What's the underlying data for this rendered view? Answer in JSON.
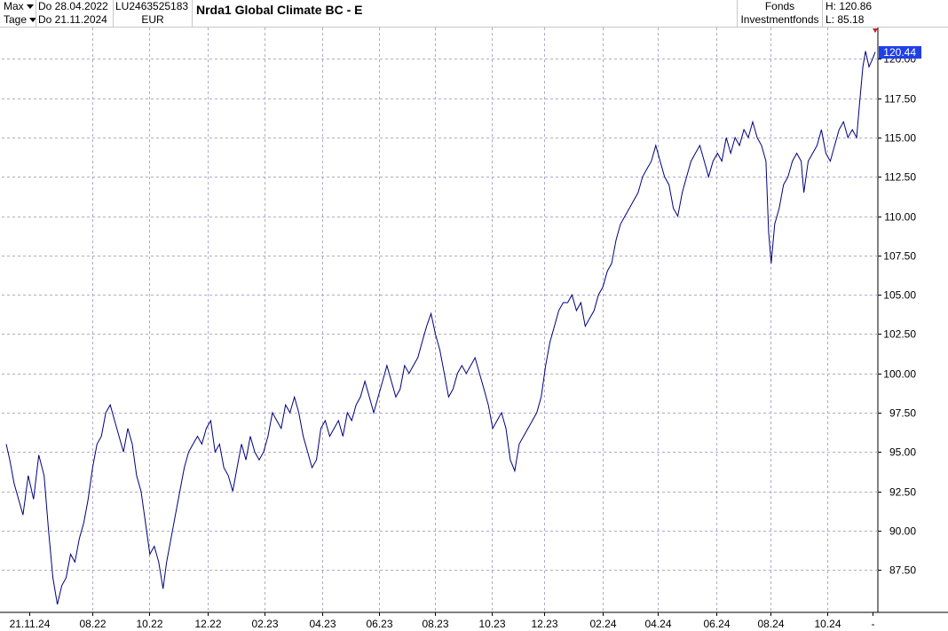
{
  "header": {
    "period_select": "Max",
    "interval_select": "Tage",
    "date_from": "Do 28.04.2022",
    "date_to": "Do 21.11.2024",
    "isin": "LU2463525183",
    "currency": "EUR",
    "title": "Nrda1 Global Climate  BC - E",
    "type1": "Fonds",
    "type2": "Investmentfonds",
    "high": "H: 120.86",
    "low": "L: 85.18"
  },
  "colors": {
    "line": "#00007f",
    "grid": "#b4a8c8",
    "last_price_bg": "#1e40e6",
    "marker": "#d02020"
  },
  "chart_data": {
    "type": "line",
    "title": "Nrda1 Global Climate  BC - E",
    "xlabel": "",
    "ylabel": "",
    "ylim": [
      84.8,
      122
    ],
    "y_ticks": [
      "87.50",
      "90.00",
      "92.50",
      "95.00",
      "97.50",
      "100.00",
      "102.50",
      "105.00",
      "107.50",
      "110.00",
      "112.50",
      "115.00",
      "117.50",
      "120.00"
    ],
    "x_ticks": [
      "21.11.24",
      "08.22",
      "10.22",
      "12.22",
      "02.23",
      "04.23",
      "06.23",
      "08.23",
      "10.23",
      "12.23",
      "02.24",
      "04.24",
      "06.24",
      "08.24",
      "10.24",
      "-"
    ],
    "last_price": "120.44",
    "grid": true,
    "series": [
      {
        "values": [
          [
            0,
            95.5
          ],
          [
            4,
            94.5
          ],
          [
            9,
            93.0
          ],
          [
            14,
            92.0
          ],
          [
            19,
            91.0
          ],
          [
            25,
            93.5
          ],
          [
            31,
            92.0
          ],
          [
            37,
            94.8
          ],
          [
            43,
            93.5
          ],
          [
            48,
            90.0
          ],
          [
            53,
            87.0
          ],
          [
            58,
            85.3
          ],
          [
            63,
            86.5
          ],
          [
            68,
            87.0
          ],
          [
            73,
            88.5
          ],
          [
            78,
            88.0
          ],
          [
            83,
            89.5
          ],
          [
            88,
            90.5
          ],
          [
            93,
            92.0
          ],
          [
            98,
            94.0
          ],
          [
            103,
            95.5
          ],
          [
            108,
            96.0
          ],
          [
            113,
            97.5
          ],
          [
            118,
            98.0
          ],
          [
            123,
            97.0
          ],
          [
            128,
            96.0
          ],
          [
            133,
            95.0
          ],
          [
            138,
            96.5
          ],
          [
            143,
            95.5
          ],
          [
            148,
            93.5
          ],
          [
            153,
            92.5
          ],
          [
            158,
            90.5
          ],
          [
            163,
            88.5
          ],
          [
            168,
            89.0
          ],
          [
            173,
            88.0
          ],
          [
            178,
            86.3
          ],
          [
            182,
            88.0
          ],
          [
            187,
            89.5
          ],
          [
            192,
            91.0
          ],
          [
            197,
            92.5
          ],
          [
            202,
            94.0
          ],
          [
            207,
            95.0
          ],
          [
            212,
            95.5
          ],
          [
            217,
            96.0
          ],
          [
            222,
            95.5
          ],
          [
            227,
            96.5
          ],
          [
            232,
            97.0
          ],
          [
            237,
            95.0
          ],
          [
            242,
            95.5
          ],
          [
            247,
            94.0
          ],
          [
            252,
            93.5
          ],
          [
            257,
            92.5
          ],
          [
            262,
            94.0
          ],
          [
            267,
            95.5
          ],
          [
            272,
            94.5
          ],
          [
            277,
            96.0
          ],
          [
            282,
            95.0
          ],
          [
            287,
            94.5
          ],
          [
            292,
            95.0
          ],
          [
            297,
            96.0
          ],
          [
            302,
            97.5
          ],
          [
            307,
            97.0
          ],
          [
            312,
            96.5
          ],
          [
            317,
            98.0
          ],
          [
            322,
            97.5
          ],
          [
            327,
            98.5
          ],
          [
            332,
            97.5
          ],
          [
            337,
            96.0
          ],
          [
            342,
            95.0
          ],
          [
            347,
            94.0
          ],
          [
            352,
            94.5
          ],
          [
            357,
            96.5
          ],
          [
            362,
            97.0
          ],
          [
            367,
            96.0
          ],
          [
            372,
            96.5
          ],
          [
            377,
            97.0
          ],
          [
            382,
            96.0
          ],
          [
            387,
            97.5
          ],
          [
            392,
            97.0
          ],
          [
            397,
            98.0
          ],
          [
            402,
            98.5
          ],
          [
            407,
            99.5
          ],
          [
            412,
            98.5
          ],
          [
            417,
            97.5
          ],
          [
            422,
            98.5
          ],
          [
            427,
            99.5
          ],
          [
            432,
            100.5
          ],
          [
            437,
            99.5
          ],
          [
            442,
            98.5
          ],
          [
            447,
            99.0
          ],
          [
            452,
            100.5
          ],
          [
            457,
            100.0
          ],
          [
            462,
            100.5
          ],
          [
            467,
            101.0
          ],
          [
            472,
            102.0
          ],
          [
            477,
            103.0
          ],
          [
            482,
            103.8
          ],
          [
            487,
            102.5
          ],
          [
            492,
            101.5
          ],
          [
            497,
            100.0
          ],
          [
            502,
            98.5
          ],
          [
            507,
            99.0
          ],
          [
            512,
            100.0
          ],
          [
            517,
            100.5
          ],
          [
            522,
            100.0
          ],
          [
            527,
            100.5
          ],
          [
            532,
            101.0
          ],
          [
            537,
            100.0
          ],
          [
            542,
            99.0
          ],
          [
            547,
            98.0
          ],
          [
            552,
            96.5
          ],
          [
            557,
            97.0
          ],
          [
            562,
            97.5
          ],
          [
            567,
            96.5
          ],
          [
            572,
            94.5
          ],
          [
            577,
            93.8
          ],
          [
            582,
            95.5
          ],
          [
            587,
            96.0
          ],
          [
            592,
            96.5
          ],
          [
            597,
            97.0
          ],
          [
            602,
            97.5
          ],
          [
            607,
            98.5
          ],
          [
            612,
            100.5
          ],
          [
            617,
            102.0
          ],
          [
            622,
            103.0
          ],
          [
            627,
            104.0
          ],
          [
            632,
            104.5
          ],
          [
            637,
            104.5
          ],
          [
            642,
            105.0
          ],
          [
            647,
            104.0
          ],
          [
            652,
            104.5
          ],
          [
            657,
            103.0
          ],
          [
            662,
            103.5
          ],
          [
            667,
            104.0
          ],
          [
            672,
            105.0
          ],
          [
            677,
            105.5
          ],
          [
            682,
            106.5
          ],
          [
            687,
            107.0
          ],
          [
            692,
            108.5
          ],
          [
            697,
            109.5
          ],
          [
            702,
            110.0
          ],
          [
            707,
            110.5
          ],
          [
            712,
            111.0
          ],
          [
            717,
            111.5
          ],
          [
            722,
            112.5
          ],
          [
            727,
            113.0
          ],
          [
            732,
            113.5
          ],
          [
            737,
            114.5
          ],
          [
            742,
            113.5
          ],
          [
            747,
            112.5
          ],
          [
            752,
            112.0
          ],
          [
            757,
            110.5
          ],
          [
            762,
            110.0
          ],
          [
            767,
            111.5
          ],
          [
            772,
            112.5
          ],
          [
            777,
            113.5
          ],
          [
            782,
            114.0
          ],
          [
            787,
            114.5
          ],
          [
            792,
            113.5
          ],
          [
            797,
            112.5
          ],
          [
            802,
            113.5
          ],
          [
            807,
            114.0
          ],
          [
            812,
            113.5
          ],
          [
            817,
            115.0
          ],
          [
            822,
            114.0
          ],
          [
            827,
            115.0
          ],
          [
            832,
            114.5
          ],
          [
            837,
            115.5
          ],
          [
            842,
            115.0
          ],
          [
            847,
            116.0
          ],
          [
            852,
            115.0
          ],
          [
            857,
            114.5
          ],
          [
            862,
            113.5
          ],
          [
            865,
            109.0
          ],
          [
            868,
            107.0
          ],
          [
            872,
            109.5
          ],
          [
            877,
            110.5
          ],
          [
            882,
            112.0
          ],
          [
            887,
            112.5
          ],
          [
            892,
            113.5
          ],
          [
            897,
            114.0
          ],
          [
            902,
            113.5
          ],
          [
            905,
            111.5
          ],
          [
            910,
            113.5
          ],
          [
            915,
            114.0
          ],
          [
            920,
            114.5
          ],
          [
            925,
            115.5
          ],
          [
            930,
            114.0
          ],
          [
            935,
            113.5
          ],
          [
            940,
            114.5
          ],
          [
            945,
            115.5
          ],
          [
            950,
            116.0
          ],
          [
            955,
            115.0
          ],
          [
            960,
            115.5
          ],
          [
            965,
            115.0
          ],
          [
            968,
            117.0
          ],
          [
            972,
            119.5
          ],
          [
            975,
            120.5
          ],
          [
            979,
            119.5
          ],
          [
            983,
            120.0
          ],
          [
            986,
            120.44
          ]
        ]
      }
    ]
  }
}
